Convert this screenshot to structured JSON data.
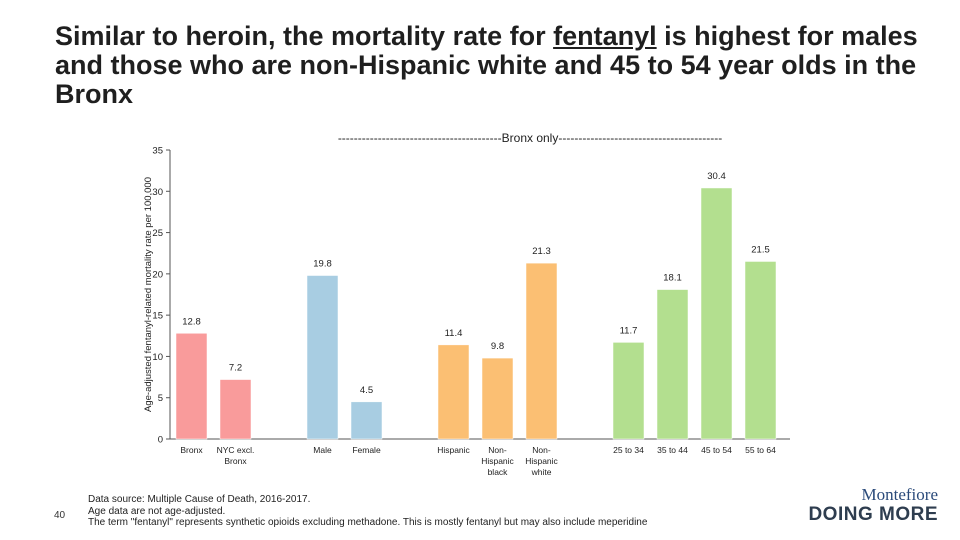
{
  "title": {
    "before": "Similar to heroin, the mortality rate for ",
    "underlined": "fentanyl",
    "after": " is highest for males and those who are non-Hispanic white and 45 to 54 year olds in the Bronx"
  },
  "chart_data": {
    "type": "bar",
    "subtitle": "-----------------------------------------Bronx only-----------------------------------------",
    "ylabel": "Age-adjusted fentanyl-related mortality rate per 100,000",
    "ylim": [
      0,
      35
    ],
    "yticks": [
      0,
      5,
      10,
      15,
      20,
      25,
      30,
      35
    ],
    "groups": [
      {
        "name": "geo",
        "color": "#f99b9b",
        "bars": [
          {
            "label": [
              "Bronx"
            ],
            "value": 12.8
          },
          {
            "label": [
              "NYC excl.",
              "Bronx"
            ],
            "value": 7.2
          }
        ]
      },
      {
        "name": "sex",
        "color": "#a8cde2",
        "bars": [
          {
            "label": [
              "Male"
            ],
            "value": 19.8
          },
          {
            "label": [
              "Female"
            ],
            "value": 4.5
          }
        ]
      },
      {
        "name": "race",
        "color": "#fbbf73",
        "bars": [
          {
            "label": [
              "Hispanic"
            ],
            "value": 11.4
          },
          {
            "label": [
              "Non-",
              "Hispanic",
              "black"
            ],
            "value": 9.8
          },
          {
            "label": [
              "Non-",
              "Hispanic",
              "white"
            ],
            "value": 21.3
          }
        ]
      },
      {
        "name": "age",
        "color": "#b3df8f",
        "bars": [
          {
            "label": [
              "25 to 34"
            ],
            "value": 11.7
          },
          {
            "label": [
              "35 to 44"
            ],
            "value": 18.1
          },
          {
            "label": [
              "45 to 54"
            ],
            "value": 30.4
          },
          {
            "label": [
              "55 to 64"
            ],
            "value": 21.5
          }
        ]
      }
    ]
  },
  "footer": {
    "lines": [
      "Data source: Multiple Cause of Death, 2016-2017.",
      "Age data are not age-adjusted.",
      "The term \"fentanyl\" represents synthetic opioids excluding methadone.  This is mostly fentanyl but may also include meperidine"
    ]
  },
  "page_number": "40",
  "logo": {
    "brand": "Montefiore",
    "tagline": "DOING MORE"
  }
}
